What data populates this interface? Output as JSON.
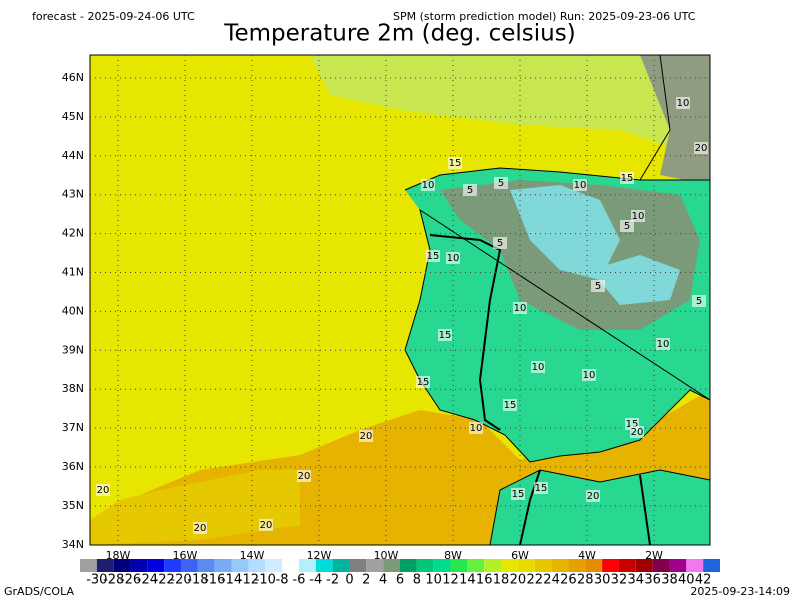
{
  "header": {
    "left": "forecast - 2025-09-24-06 UTC",
    "right": "SPM (storm prediction model) Run: 2025-09-23-06 UTC",
    "title": "Temperature 2m (deg. celsius)"
  },
  "map": {
    "lat_labels": [
      "46N",
      "45N",
      "44N",
      "43N",
      "42N",
      "41N",
      "40N",
      "39N",
      "38N",
      "37N",
      "36N",
      "35N",
      "34N"
    ],
    "lon_labels": [
      "18W",
      "16W",
      "14W",
      "12W",
      "10W",
      "8W",
      "6W",
      "4W",
      "2W"
    ],
    "contour_labels": [
      "10",
      "5",
      "15",
      "10",
      "5",
      "10",
      "15",
      "5",
      "10",
      "5",
      "10",
      "15",
      "10",
      "5",
      "15",
      "10",
      "10",
      "5",
      "15",
      "10",
      "10",
      "15",
      "15",
      "20",
      "20",
      "20",
      "20",
      "20",
      "20",
      "15",
      "15",
      "20",
      "20"
    ]
  },
  "colorbar": {
    "labels": [
      "-30",
      "-28",
      "-26",
      "-24",
      "-22",
      "-20",
      "-18",
      "-16",
      "-14",
      "-12",
      "-10",
      "-8",
      "-6",
      "-4",
      "-2",
      "0",
      "2",
      "4",
      "6",
      "8",
      "10",
      "12",
      "14",
      "16",
      "18",
      "20",
      "22",
      "24",
      "26",
      "28",
      "30",
      "32",
      "34",
      "36",
      "38",
      "40",
      "42"
    ],
    "colors": [
      "#a0a0a0",
      "#1e1e6e",
      "#00007f",
      "#0000b0",
      "#0000e0",
      "#1e3cff",
      "#3c64f0",
      "#5a8cf0",
      "#78aaf5",
      "#96c8fa",
      "#b4dcff",
      "#d2ebff",
      "#ffffff",
      "#b4f0fa",
      "#00dcdc",
      "#00b4a0",
      "#808080",
      "#a0a0a0",
      "#7a9a7a",
      "#00a064",
      "#00c878",
      "#00dc8c",
      "#28e650",
      "#64f03c",
      "#b4f028",
      "#e6e600",
      "#e6dc00",
      "#e6c800",
      "#e6b400",
      "#e6a000",
      "#e68c00",
      "#ff0000",
      "#c80000",
      "#a00000",
      "#82004b",
      "#a0008c",
      "#f078f0",
      "#1e64dc"
    ]
  },
  "footer": {
    "left": "GrADS/COLA",
    "right": "2025-09-23-14:09"
  }
}
